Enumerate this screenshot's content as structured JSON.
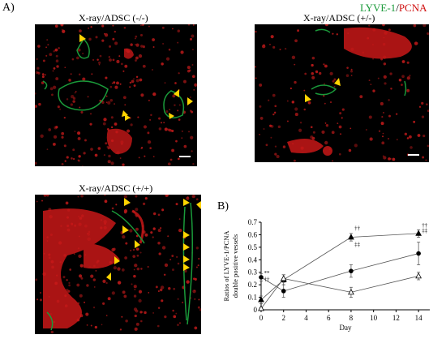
{
  "panel_a_label": "A)",
  "panel_b_label": "B)",
  "legend_title": {
    "lyve": "LYVE-1",
    "sep": "/",
    "pcna": "PCNA"
  },
  "colors": {
    "lyve": "#1a9a3a",
    "pcna": "#d01010",
    "arrow": "#ffd400",
    "scale_bar": "#ffffff"
  },
  "images": [
    {
      "title": "X-ray/ADSC (-/-)",
      "icon": "arrowhead-markers"
    },
    {
      "title": "X-ray/ADSC (+/-)",
      "icon": "arrowhead-markers"
    },
    {
      "title": "X-ray/ADSC (+/+)",
      "icon": "arrowhead-markers"
    }
  ],
  "chart_data": {
    "type": "line",
    "title": "",
    "xlabel": "Day",
    "ylabel": "Ratios of LYVE-1/PCNA double positive vessels",
    "ylabel_lines": [
      "Ratios of LYVE-1/PCNA",
      "double positive vessels"
    ],
    "xlim": [
      0,
      15
    ],
    "ylim": [
      0,
      0.7
    ],
    "x_ticks": [
      "0",
      "2",
      "4",
      "6",
      "8",
      "10",
      "12",
      "14"
    ],
    "y_ticks": [
      "0",
      "0.1",
      "0.2",
      "0.3",
      "0.4",
      "0.5",
      "0.6",
      "0.7"
    ],
    "series": [
      {
        "marker": "triangle-filled",
        "x": [
          0,
          2,
          8,
          14
        ],
        "y": [
          0.08,
          0.24,
          0.58,
          0.61
        ],
        "err": [
          0.03,
          0.04,
          0.03,
          0.03
        ]
      },
      {
        "marker": "circle-filled",
        "x": [
          0,
          2,
          8,
          14
        ],
        "y": [
          0.26,
          0.15,
          0.31,
          0.45
        ],
        "err": [
          0.03,
          0.05,
          0.05,
          0.09
        ]
      },
      {
        "marker": "triangle-open",
        "x": [
          0,
          2,
          8,
          14
        ],
        "y": [
          0.01,
          0.25,
          0.14,
          0.27
        ],
        "err": [
          0.01,
          0.03,
          0.04,
          0.03
        ]
      }
    ],
    "annotations": [
      {
        "text": "**",
        "x": 0.25,
        "y": 0.28
      },
      {
        "text": "††",
        "x": 0.25,
        "y": 0.23
      },
      {
        "text": "††",
        "x": 8.3,
        "y": 0.64
      },
      {
        "text": "‡‡",
        "x": 8.3,
        "y": 0.51
      },
      {
        "text": "††",
        "x": 14.3,
        "y": 0.66
      },
      {
        "text": "‡‡",
        "x": 14.3,
        "y": 0.62
      }
    ]
  }
}
